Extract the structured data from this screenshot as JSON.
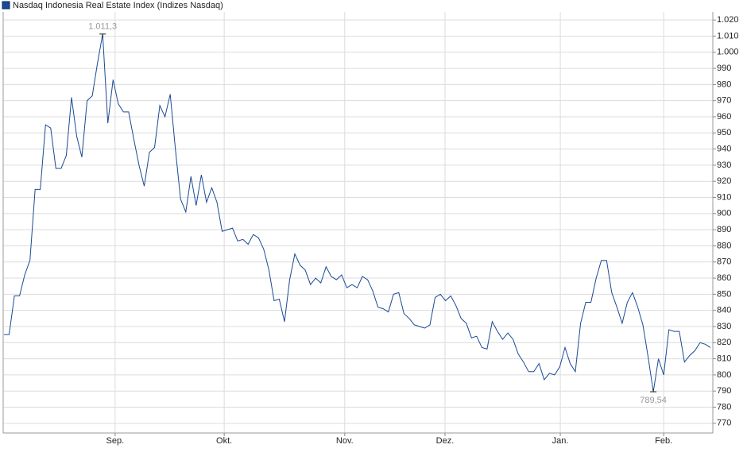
{
  "chart_data": {
    "type": "line",
    "series": [
      {
        "name": "Nasdaq Indonesia Real Estate Index  (Indizes Nasdaq)",
        "color": "#1a4a94",
        "values": [
          825,
          825,
          849,
          849,
          862,
          871,
          915,
          915,
          955,
          953,
          928,
          928,
          936,
          972,
          948,
          935,
          970,
          973,
          993,
          1011.3,
          956,
          983,
          968,
          963,
          963,
          946,
          930,
          917,
          938,
          941,
          967,
          960,
          974,
          940,
          909,
          901,
          923,
          905,
          924,
          907,
          916,
          907,
          889,
          890,
          891,
          883,
          884,
          881,
          887,
          885,
          878,
          865,
          846,
          847,
          833,
          859,
          875,
          868,
          865,
          856,
          860,
          857,
          867,
          861,
          859,
          862,
          854,
          856,
          854,
          861,
          859,
          852,
          842,
          841,
          839,
          850,
          851,
          838,
          835,
          831,
          830,
          829,
          831,
          848,
          850,
          846,
          849,
          843,
          835,
          832,
          823,
          824,
          817,
          816,
          833,
          827,
          822,
          826,
          822,
          813,
          808,
          802,
          802,
          807,
          797,
          801,
          800,
          805,
          817,
          807,
          802,
          832,
          845,
          845,
          860,
          871,
          871,
          851,
          842,
          832,
          845,
          851,
          842,
          831,
          811,
          789.54,
          810,
          800,
          828,
          827,
          827,
          808,
          812,
          815,
          820,
          819,
          817
        ]
      }
    ],
    "max_label": "1.011,3",
    "min_label": "789,54",
    "xlim": [
      -0.15,
      136.46
    ],
    "xticks": [
      {
        "value": 21.4,
        "label": "Sep."
      },
      {
        "value": 42.4,
        "label": "Okt."
      },
      {
        "value": 65.6,
        "label": "Nov."
      },
      {
        "value": 84.9,
        "label": "Dez."
      },
      {
        "value": 107.1,
        "label": "Jan."
      },
      {
        "value": 127.0,
        "label": "Feb."
      }
    ],
    "ylim": [
      764,
      1025
    ],
    "yticks": [
      770,
      780,
      790,
      800,
      810,
      820,
      830,
      840,
      850,
      860,
      870,
      880,
      890,
      900,
      910,
      920,
      930,
      940,
      950,
      960,
      970,
      980,
      990,
      {
        "value": 1000,
        "label": "1.000"
      },
      {
        "value": 1010,
        "label": "1.010"
      },
      {
        "value": 1020,
        "label": "1.020"
      }
    ],
    "grid": true
  }
}
